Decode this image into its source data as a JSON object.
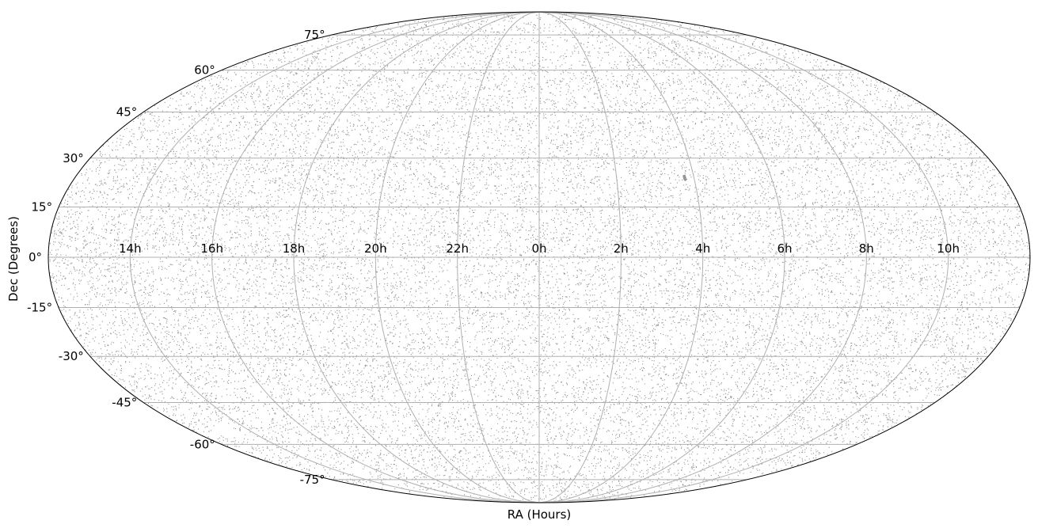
{
  "chart_data": {
    "type": "scatter",
    "projection": "mollweide",
    "xlabel": "RA (Hours)",
    "ylabel": "Dec (Degrees)",
    "x_ticks": [
      {
        "label": "14h",
        "ra_deg": 210
      },
      {
        "label": "16h",
        "ra_deg": 240
      },
      {
        "label": "18h",
        "ra_deg": 270
      },
      {
        "label": "20h",
        "ra_deg": 300
      },
      {
        "label": "22h",
        "ra_deg": 330
      },
      {
        "label": "0h",
        "ra_deg": 0
      },
      {
        "label": "2h",
        "ra_deg": 30
      },
      {
        "label": "4h",
        "ra_deg": 60
      },
      {
        "label": "6h",
        "ra_deg": 90
      },
      {
        "label": "8h",
        "ra_deg": 120
      },
      {
        "label": "10h",
        "ra_deg": 150
      }
    ],
    "y_ticks": [
      {
        "label": "75°",
        "dec_deg": 75
      },
      {
        "label": "60°",
        "dec_deg": 60
      },
      {
        "label": "45°",
        "dec_deg": 45
      },
      {
        "label": "30°",
        "dec_deg": 30
      },
      {
        "label": "15°",
        "dec_deg": 15
      },
      {
        "label": "0°",
        "dec_deg": 0
      },
      {
        "label": "-15°",
        "dec_deg": -15
      },
      {
        "label": "-30°",
        "dec_deg": -30
      },
      {
        "label": "-45°",
        "dec_deg": -45
      },
      {
        "label": "-60°",
        "dec_deg": -60
      },
      {
        "label": "-75°",
        "dec_deg": -75
      }
    ],
    "grid": true,
    "point_color": "#000000",
    "grid_color": "#b0b0b0",
    "distribution": "approximately uniform over the celestial sphere (tens of thousands of points)",
    "notable_cluster": {
      "ra_hours": 3.75,
      "dec_deg": 24
    }
  }
}
